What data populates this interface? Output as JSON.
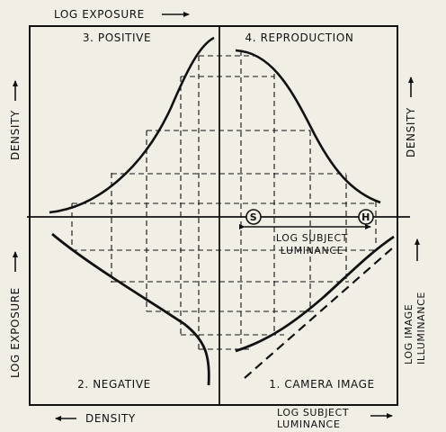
{
  "axes": {
    "top": "LOG EXPOSURE",
    "bottom_left": "DENSITY",
    "bottom_right_line1": "LOG SUBJECT",
    "bottom_right_line2": "LUMINANCE",
    "left_upper": "DENSITY",
    "left_lower": "LOG EXPOSURE",
    "right_upper": "DENSITY",
    "right_lower_line1": "LOG IMAGE",
    "right_lower_line2": "ILLUMINANCE"
  },
  "quadrants": {
    "q1": "1. CAMERA IMAGE",
    "q2": "2. NEGATIVE",
    "q3": "3. POSITIVE",
    "q4": "4. REPRODUCTION"
  },
  "markers": {
    "shadow": "S",
    "highlight": "H"
  },
  "range_label_line1": "LOG SUBJECT",
  "range_label_line2": "LUMINANCE",
  "colors": {
    "paper": "#f1eee6",
    "ink": "#111111"
  }
}
